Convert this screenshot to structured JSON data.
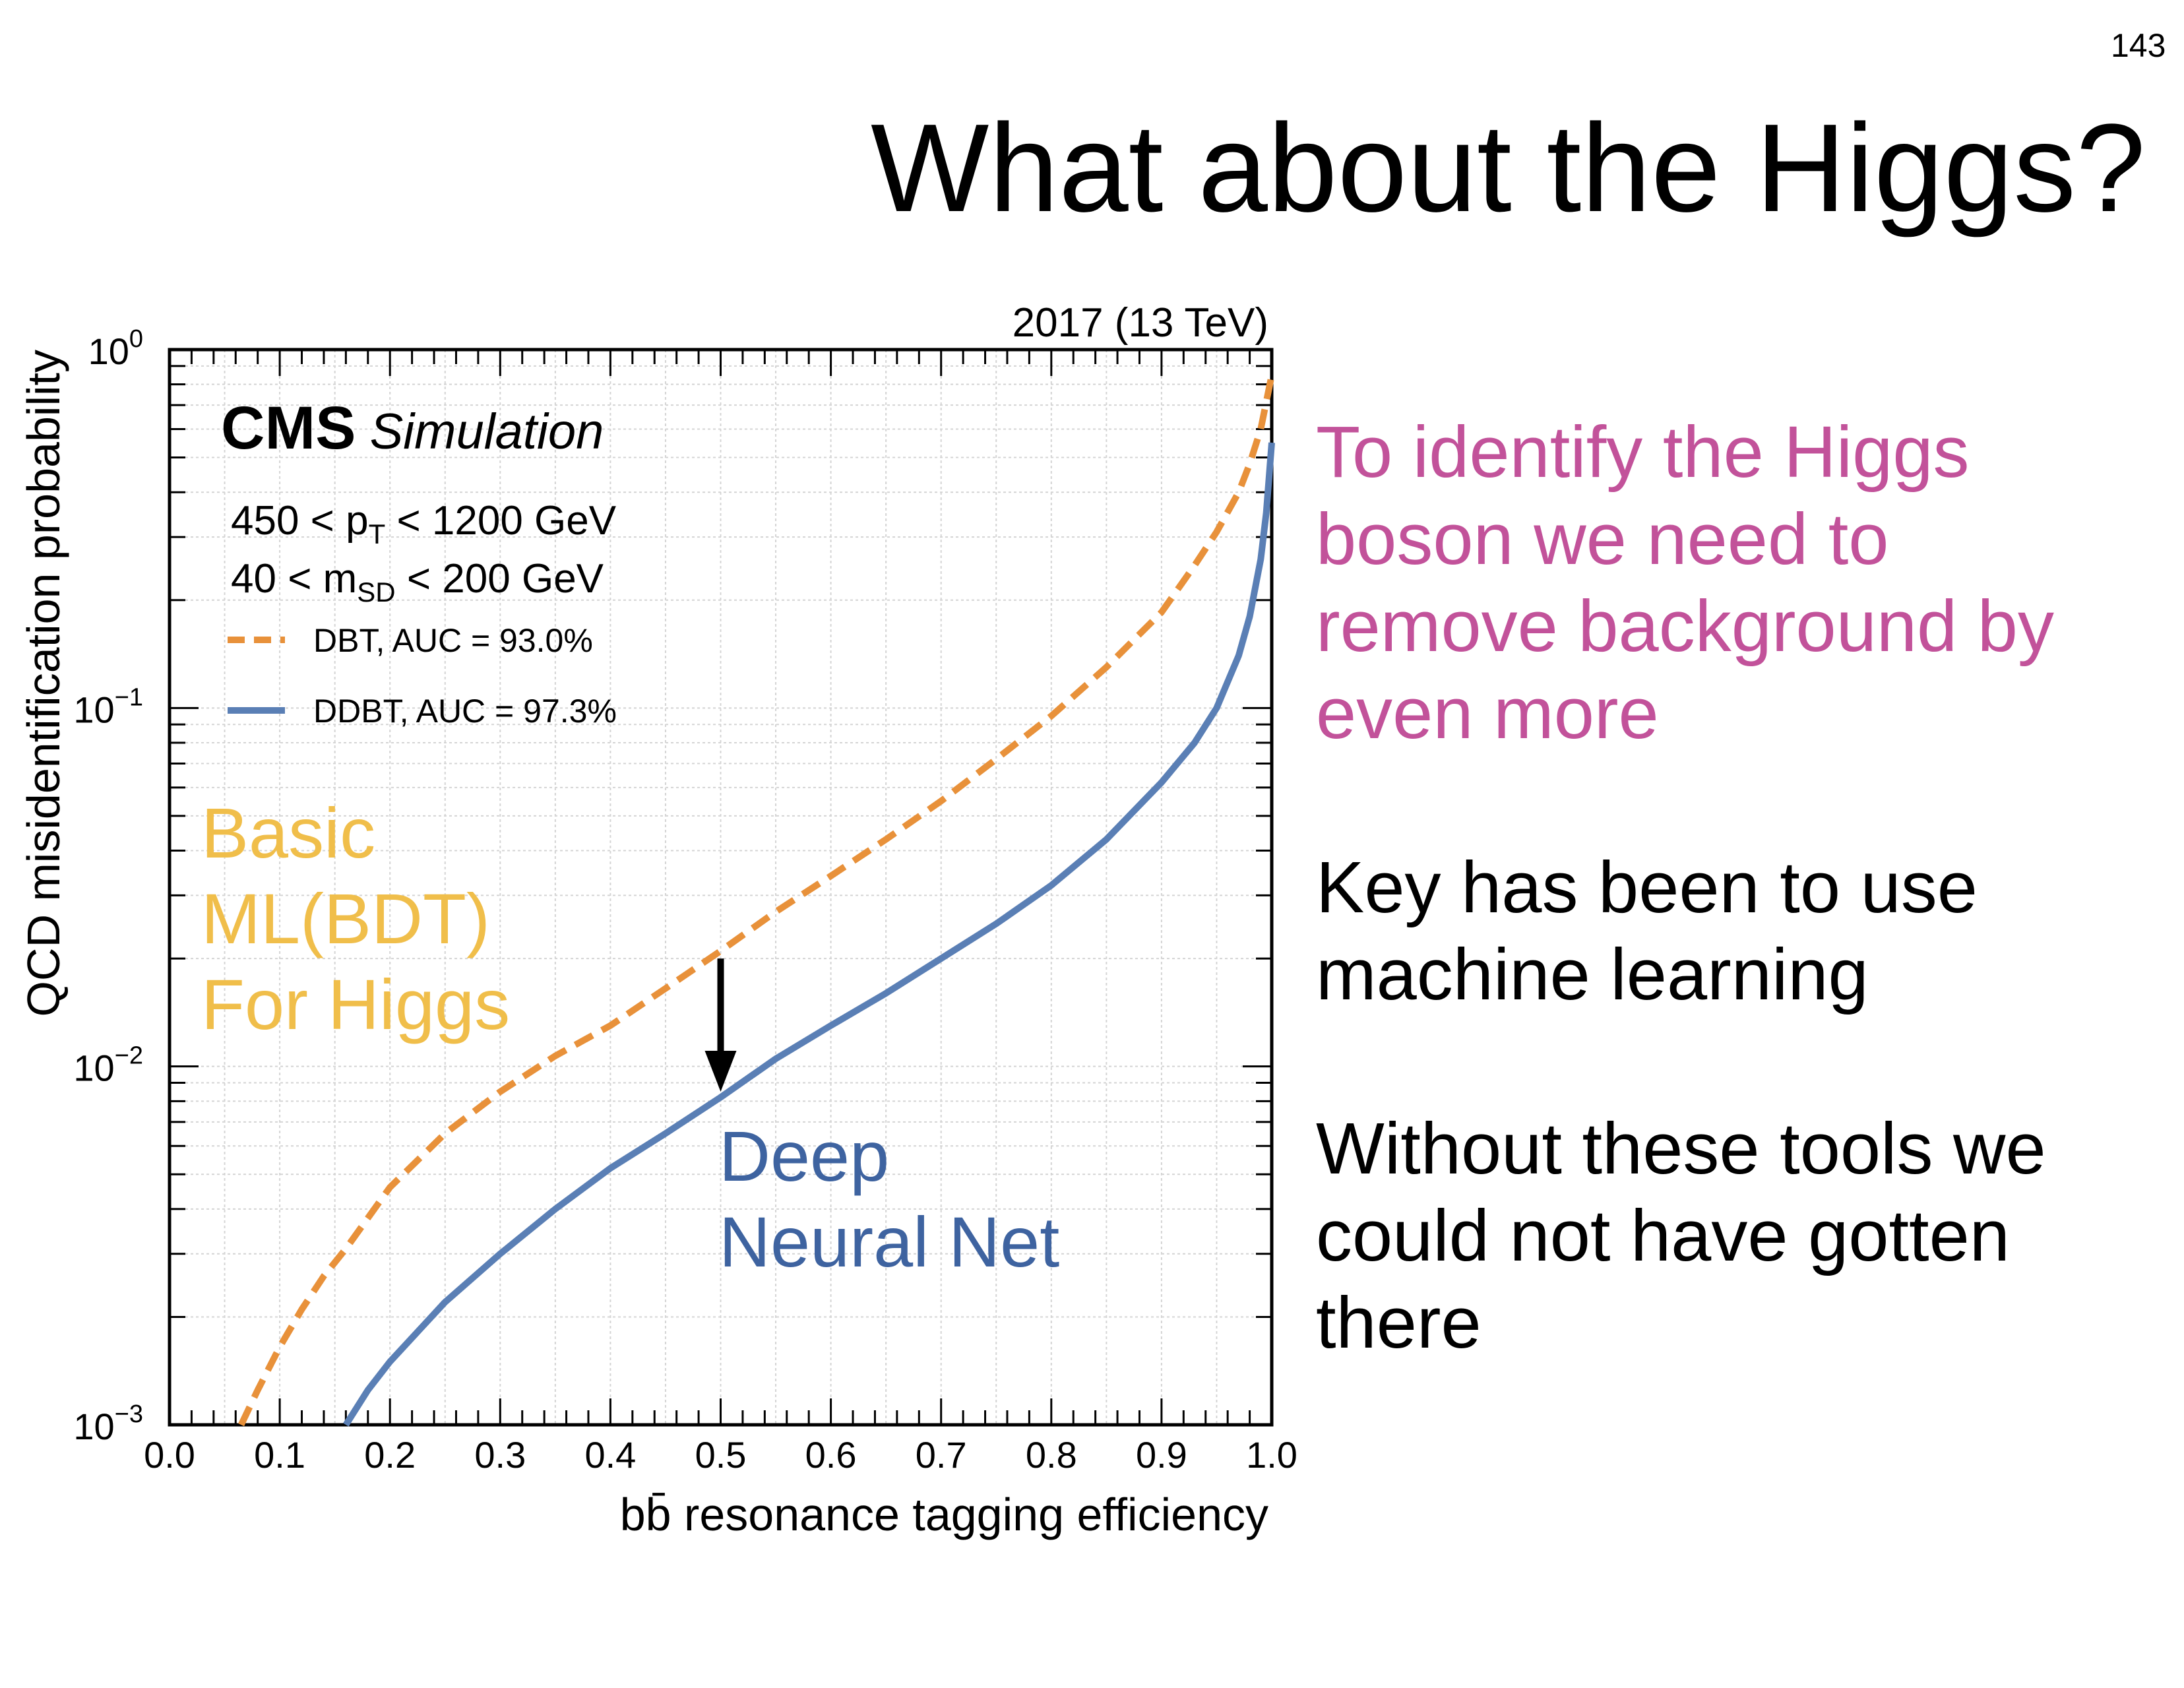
{
  "page_number": "143",
  "slide_title": "What about the Higgs?",
  "bullets": [
    {
      "lines": [
        "To identify the Higgs",
        "boson we need to",
        "remove background by",
        "even more"
      ],
      "color": "#c2529a"
    },
    {
      "lines": [
        "Key has been to use",
        "machine learning"
      ],
      "color": "#000000"
    },
    {
      "lines": [
        "Without these tools we",
        "could  not have gotten",
        "there"
      ],
      "color": "#000000"
    }
  ],
  "chart_data": {
    "type": "line",
    "top_right_label": "2017 (13 TeV)",
    "experiment": "CMS",
    "experiment_sub": "Simulation",
    "xlabel": "bb̄ resonance tagging efficiency",
    "ylabel": "QCD misidentification probability",
    "xlim": [
      0,
      1
    ],
    "ylim": [
      0.001,
      1
    ],
    "yscale": "log",
    "x_ticks": [
      "0.0",
      "0.1",
      "0.2",
      "0.3",
      "0.4",
      "0.5",
      "0.6",
      "0.7",
      "0.8",
      "0.9",
      "1.0"
    ],
    "y_ticks": [
      {
        "value": 1,
        "base": "10",
        "exp": "0"
      },
      {
        "value": 0.1,
        "base": "10",
        "exp": "−1"
      },
      {
        "value": 0.01,
        "base": "10",
        "exp": "−2"
      },
      {
        "value": 0.001,
        "base": "10",
        "exp": "−3"
      }
    ],
    "grid": true,
    "cuts": [
      {
        "pre": "450  <  p",
        "sub": "T",
        "post": "  <  1200 GeV"
      },
      {
        "pre": "40  <  m",
        "sub": "SD",
        "post": "  <  200 GeV"
      }
    ],
    "legend_position": "top-left",
    "series": [
      {
        "name": "DBT, AUC = 93.0%",
        "color": "#e8913a",
        "dash": "dashed",
        "x": [
          0.065,
          0.08,
          0.1,
          0.12,
          0.14,
          0.16,
          0.2,
          0.25,
          0.3,
          0.35,
          0.4,
          0.45,
          0.5,
          0.55,
          0.6,
          0.65,
          0.7,
          0.75,
          0.8,
          0.85,
          0.9,
          0.93,
          0.95,
          0.97,
          0.98,
          0.99,
          1.0
        ],
        "y": [
          0.001,
          0.00125,
          0.00165,
          0.0021,
          0.0026,
          0.0031,
          0.0046,
          0.0065,
          0.0085,
          0.0107,
          0.013,
          0.0165,
          0.021,
          0.027,
          0.034,
          0.043,
          0.055,
          0.072,
          0.095,
          0.13,
          0.185,
          0.25,
          0.31,
          0.4,
          0.48,
          0.6,
          0.85
        ]
      },
      {
        "name": "DDBT, AUC = 97.3%",
        "color": "#5a7fb5",
        "dash": "solid",
        "x": [
          0.16,
          0.18,
          0.2,
          0.25,
          0.3,
          0.35,
          0.4,
          0.45,
          0.5,
          0.55,
          0.6,
          0.65,
          0.7,
          0.75,
          0.8,
          0.85,
          0.9,
          0.93,
          0.95,
          0.97,
          0.98,
          0.99,
          0.995,
          1.0
        ],
        "y": [
          0.001,
          0.00125,
          0.0015,
          0.0022,
          0.003,
          0.004,
          0.0052,
          0.0065,
          0.0082,
          0.0105,
          0.013,
          0.016,
          0.02,
          0.025,
          0.032,
          0.043,
          0.062,
          0.08,
          0.1,
          0.14,
          0.18,
          0.26,
          0.35,
          0.55
        ]
      }
    ],
    "annotations": [
      {
        "lines": [
          "Basic",
          "ML(BDT)",
          "For Higgs"
        ],
        "color": "#f0be4a"
      },
      {
        "lines": [
          "Deep",
          "Neural Net"
        ],
        "color": "#3e63a0"
      }
    ],
    "arrow": {
      "x": 0.5,
      "from_y": 0.02,
      "to_y": 0.0085
    }
  }
}
